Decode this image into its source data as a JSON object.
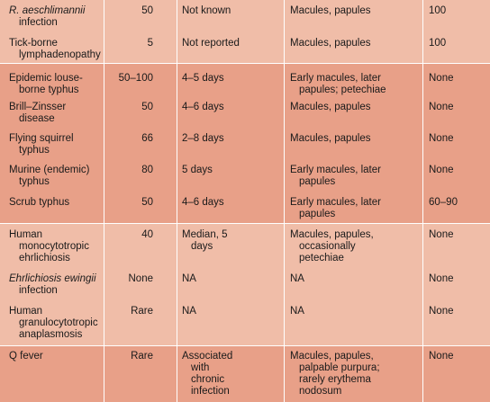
{
  "rows": [
    {
      "c0": [
        "R. aeschlimannii",
        "infection"
      ],
      "c0_italic": [
        true,
        false
      ],
      "c1": "50",
      "c2": [
        "Not known"
      ],
      "c3": [
        "Macules, papules"
      ],
      "c4": "100"
    },
    {
      "c0": [
        "Tick-borne",
        "lymphadenopathy"
      ],
      "c0_italic": [
        false,
        false
      ],
      "c1": "5",
      "c2": [
        "Not reported"
      ],
      "c3": [
        "Macules, papules"
      ],
      "c4": "100"
    },
    {
      "c0": [
        "Epidemic louse-",
        "borne typhus"
      ],
      "c0_italic": [
        false,
        false
      ],
      "c1": "50–100",
      "c2": [
        "4–5 days"
      ],
      "c3": [
        "Early macules, later",
        "papules; petechiae"
      ],
      "c4": "None"
    },
    {
      "c0": [
        "Brill–Zinsser",
        "disease"
      ],
      "c0_italic": [
        false,
        false
      ],
      "c1": "50",
      "c2": [
        "4–6 days"
      ],
      "c3": [
        "Macules, papules"
      ],
      "c4": "None"
    },
    {
      "c0": [
        "Flying squirrel",
        "typhus"
      ],
      "c0_italic": [
        false,
        false
      ],
      "c1": "66",
      "c2": [
        "2–8 days"
      ],
      "c3": [
        "Macules, papules"
      ],
      "c4": "None"
    },
    {
      "c0": [
        "Murine (endemic)",
        "typhus"
      ],
      "c0_italic": [
        false,
        false
      ],
      "c1": "80",
      "c2": [
        "5 days"
      ],
      "c3": [
        "Early macules, later",
        "papules"
      ],
      "c4": "None"
    },
    {
      "c0": [
        "Scrub typhus"
      ],
      "c0_italic": [
        false
      ],
      "c1": "50",
      "c2": [
        "4–6 days"
      ],
      "c3": [
        "Early macules, later",
        "papules"
      ],
      "c4": "60–90"
    },
    {
      "c0": [
        "Human",
        "monocytotropic",
        "ehrlichiosis"
      ],
      "c0_italic": [
        false,
        false,
        false
      ],
      "c1": "40",
      "c2": [
        "Median, 5",
        "days"
      ],
      "c3": [
        "Macules, papules,",
        "occasionally",
        "petechiae"
      ],
      "c4": "None"
    },
    {
      "c0": [
        "Ehrlichiosis ewingii",
        "infection"
      ],
      "c0_italic": [
        true,
        false
      ],
      "c1": "None",
      "c2": [
        "NA"
      ],
      "c3": [
        "NA"
      ],
      "c4": "None"
    },
    {
      "c0": [
        "Human",
        "granulocytotropic",
        "anaplasmosis"
      ],
      "c0_italic": [
        false,
        false,
        false
      ],
      "c1": "Rare",
      "c2": [
        "NA"
      ],
      "c3": [
        "NA"
      ],
      "c4": "None"
    },
    {
      "c0": [
        "Q fever"
      ],
      "c0_italic": [
        false
      ],
      "c1": "Rare",
      "c2": [
        "Associated",
        "with",
        "chronic",
        "infection"
      ],
      "c3": [
        "Macules, papules,",
        "palpable purpura;",
        "rarely erythema",
        "nodosum"
      ],
      "c4": "None"
    }
  ],
  "colors": {
    "light": "#f0bda8",
    "dark": "#e8a088",
    "rule": "#ffffff"
  }
}
